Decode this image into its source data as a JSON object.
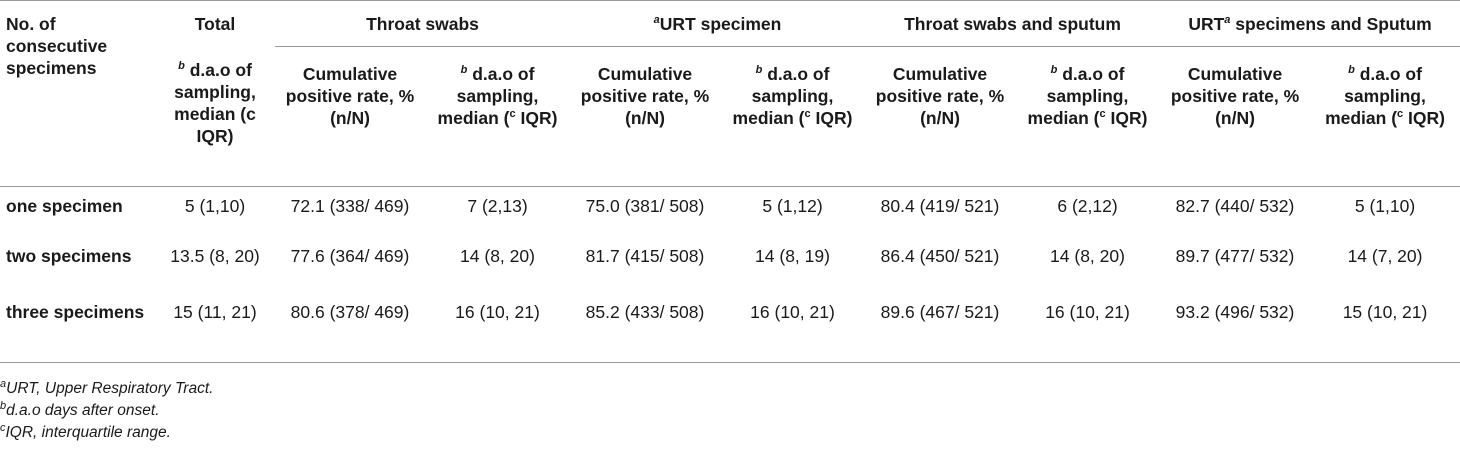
{
  "table": {
    "row_header_label": "No. of consecutive specimens",
    "groups": [
      {
        "label": "Total",
        "sup_prefix": "",
        "sup_suffix": "",
        "label_tail": ""
      },
      {
        "label": "Throat swabs",
        "sup_prefix": "",
        "sup_suffix": "",
        "label_tail": ""
      },
      {
        "label": "URT specimen",
        "sup_prefix": "a",
        "sup_suffix": "",
        "label_tail": ""
      },
      {
        "label": "Throat swabs and sputum",
        "sup_prefix": "",
        "sup_suffix": "",
        "label_tail": ""
      },
      {
        "label": "URT",
        "sup_prefix": "",
        "sup_suffix": "a",
        "label_tail": " specimens and Sputum"
      }
    ],
    "sub_headers": {
      "dao_sup": "b",
      "dao_text": "d.a.o of sampling, median (",
      "iqr_sup": "c",
      "iqr_text": "IQR)",
      "total_dao_text": "d.a.o of sampling, median (c IQR)",
      "rate_text": "Cumulative positive rate, %(n/N)"
    },
    "rows": [
      {
        "label": "one specimen",
        "cells": [
          "5 (1,10)",
          "72.1 (338/ 469)",
          "7 (2,13)",
          "75.0 (381/ 508)",
          "5 (1,12)",
          "80.4 (419/ 521)",
          "6 (2,12)",
          "82.7 (440/ 532)",
          "5 (1,10)"
        ]
      },
      {
        "label": "two specimens",
        "cells": [
          "13.5 (8, 20)",
          "77.6 (364/ 469)",
          "14 (8, 20)",
          "81.7 (415/ 508)",
          "14 (8, 19)",
          "86.4 (450/ 521)",
          "14 (8, 20)",
          "89.7 (477/ 532)",
          "14 (7, 20)"
        ]
      },
      {
        "label": "three specimens",
        "cells": [
          "15 (11, 21)",
          "80.6 (378/ 469)",
          "16 (10, 21)",
          "85.2 (433/ 508)",
          "16 (10, 21)",
          "89.6 (467/ 521)",
          "16 (10, 21)",
          "93.2 (496/ 532)",
          "15 (10, 21)"
        ]
      }
    ]
  },
  "footnotes": [
    {
      "sup": "a",
      "text": "URT, Upper Respiratory Tract."
    },
    {
      "sup": "b",
      "text": "d.a.o days after onset."
    },
    {
      "sup": "c",
      "text": "IQR, interquartile range."
    }
  ]
}
